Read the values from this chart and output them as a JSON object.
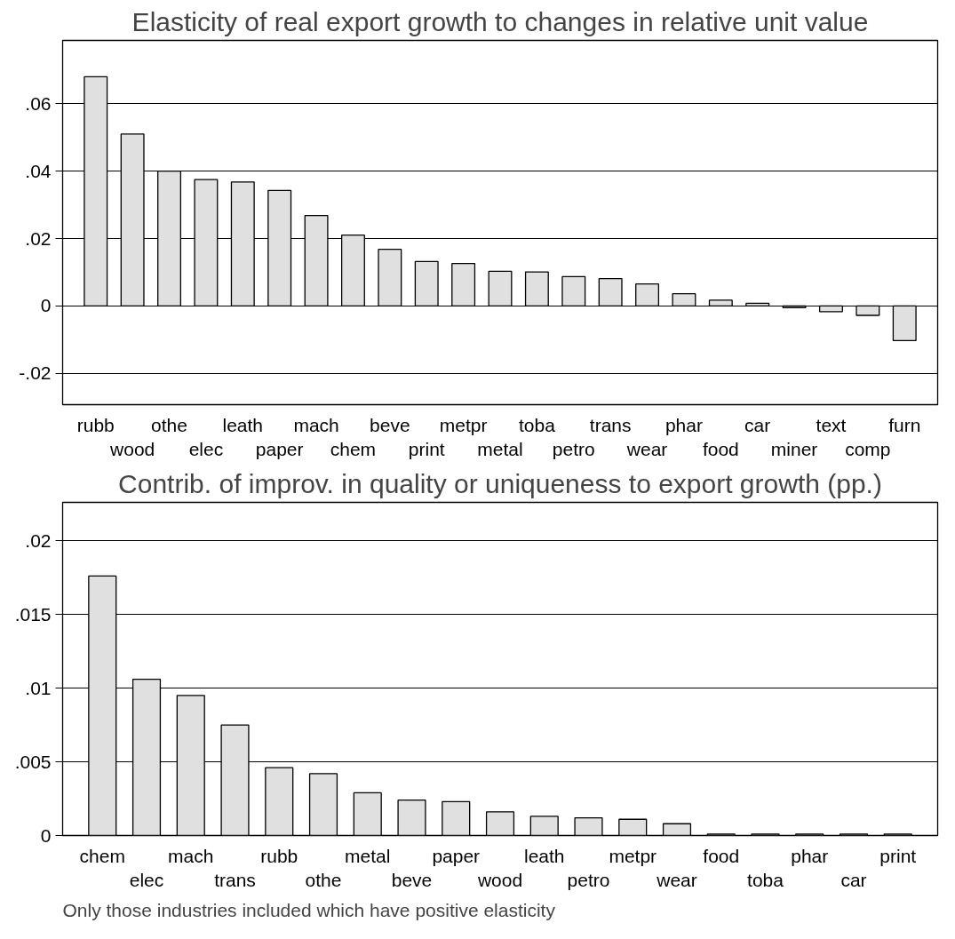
{
  "chart_data": [
    {
      "type": "bar",
      "title": "Elasticity of real export growth to changes in relative unit value",
      "categories": [
        "rubb",
        "wood",
        "othe",
        "elec",
        "leath",
        "paper",
        "mach",
        "chem",
        "beve",
        "print",
        "metpr",
        "metal",
        "toba",
        "petro",
        "trans",
        "wear",
        "phar",
        "food",
        "car",
        "miner",
        "text",
        "comp",
        "furn"
      ],
      "values": [
        0.068,
        0.051,
        0.04,
        0.0375,
        0.0368,
        0.0343,
        0.0268,
        0.021,
        0.0168,
        0.0132,
        0.0126,
        0.0103,
        0.0101,
        0.0087,
        0.0081,
        0.0065,
        0.0036,
        0.0017,
        0.0008,
        -0.0005,
        -0.0017,
        -0.0028,
        -0.0103
      ],
      "color": "#e0e0e0",
      "ylim": [
        -0.0293,
        0.0788
      ],
      "yticks": [
        {
          "value": -0.02,
          "label": "-.02"
        },
        0,
        {
          "value": 0.02,
          "label": ".02"
        },
        {
          "value": 0.04,
          "label": ".04"
        },
        {
          "value": 0.06,
          "label": ".06"
        }
      ],
      "grid": "y"
    },
    {
      "type": "bar",
      "title": "Contrib. of improv. in quality or uniqueness to export growth (pp.)",
      "categories": [
        "chem",
        "elec",
        "mach",
        "trans",
        "rubb",
        "othe",
        "metal",
        "beve",
        "paper",
        "wood",
        "leath",
        "petro",
        "metpr",
        "wear",
        "food",
        "toba",
        "phar",
        "car",
        "print"
      ],
      "values": [
        0.0176,
        0.0106,
        0.0095,
        0.0075,
        0.0046,
        0.0042,
        0.0029,
        0.0024,
        0.0023,
        0.0016,
        0.0013,
        0.0012,
        0.0011,
        0.0008,
        0.0001,
        0.0001,
        0.0001,
        0.0001,
        0.0001
      ],
      "color": "#e0e0e0",
      "ylim": [
        0,
        0.0226
      ],
      "yticks": [
        0,
        {
          "value": 0.005,
          "label": ".005"
        },
        {
          "value": 0.01,
          "label": ".01"
        },
        {
          "value": 0.015,
          "label": ".015"
        },
        {
          "value": 0.02,
          "label": ".02"
        }
      ],
      "grid": "y",
      "annotations": [
        "Only those industries included which have positive elasticity"
      ]
    }
  ]
}
